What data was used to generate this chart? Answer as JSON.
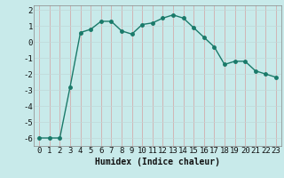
{
  "x": [
    0,
    1,
    2,
    3,
    4,
    5,
    6,
    7,
    8,
    9,
    10,
    11,
    12,
    13,
    14,
    15,
    16,
    17,
    18,
    19,
    20,
    21,
    22,
    23
  ],
  "y": [
    -6,
    -6,
    -6,
    -2.8,
    0.6,
    0.8,
    1.3,
    1.3,
    0.7,
    0.5,
    1.1,
    1.2,
    1.5,
    1.7,
    1.5,
    0.9,
    0.3,
    -0.3,
    -1.4,
    -1.2,
    -1.2,
    -1.8,
    -2.0,
    -2.2
  ],
  "line_color": "#1a7a6a",
  "marker_color": "#1a7a6a",
  "bg_color": "#c8eaea",
  "grid_color": "#c0d8d8",
  "grid_minor_color": "#d8ecec",
  "xlabel": "Humidex (Indice chaleur)",
  "ylim": [
    -6.5,
    2.3
  ],
  "xlim": [
    -0.5,
    23.5
  ],
  "yticks": [
    -6,
    -5,
    -4,
    -3,
    -2,
    -1,
    0,
    1,
    2
  ],
  "xticks": [
    0,
    1,
    2,
    3,
    4,
    5,
    6,
    7,
    8,
    9,
    10,
    11,
    12,
    13,
    14,
    15,
    16,
    17,
    18,
    19,
    20,
    21,
    22,
    23
  ],
  "xlabel_fontsize": 7,
  "tick_fontsize": 6.5,
  "line_width": 1.0,
  "marker_size": 2.5
}
